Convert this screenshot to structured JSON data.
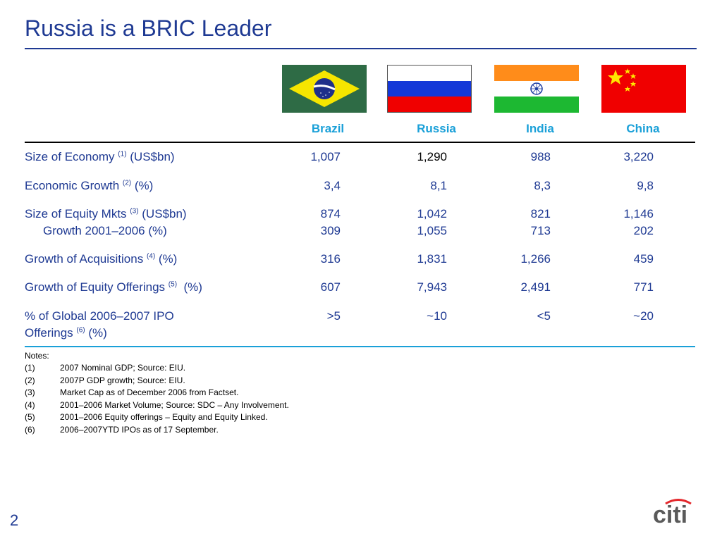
{
  "title": "Russia is a BRIC Leader",
  "countries": [
    "Brazil",
    "Russia",
    "India",
    "China"
  ],
  "flag_icons": [
    "brazil-flag-icon",
    "russia-flag-icon",
    "india-flag-icon",
    "china-flag-icon"
  ],
  "rows": [
    {
      "label": "Size of Economy",
      "note": "(1)",
      "suffix": " (US$bn)",
      "values": [
        "1,007",
        "1,290",
        "988",
        "3,220"
      ]
    },
    {
      "label": "Economic Growth",
      "note": "(2)",
      "suffix": " (%)",
      "values": [
        "3,4",
        "8,1",
        "8,3",
        "9,8"
      ]
    },
    {
      "label": "Size of Equity Mkts",
      "note": "(3)",
      "suffix": " (US$bn)",
      "values": [
        "874",
        "1,042",
        "821",
        "1,146"
      ]
    },
    {
      "label": "Growth 2001–2006 (%)",
      "values": [
        "309",
        "1,055",
        "713",
        "202"
      ]
    },
    {
      "label": "Growth of Acquisitions",
      "note": "(4)",
      "suffix": " (%)",
      "values": [
        "316",
        "1,831",
        "1,266",
        "459"
      ]
    },
    {
      "label": "Growth of Equity Offerings",
      "note": "(5)",
      "suffix": "  (%)",
      "values": [
        "607",
        "7,943",
        "2,491",
        "771"
      ]
    },
    {
      "label": "% of Global 2006–2007 IPO",
      "label2": "Offerings",
      "note": "(6)",
      "suffix": " (%)",
      "values": [
        ">5",
        "~10",
        "<5",
        "~20"
      ]
    }
  ],
  "notes": {
    "title": "Notes:",
    "items": [
      {
        "num": "(1)",
        "text": "2007 Nominal GDP; Source:  EIU."
      },
      {
        "num": "(2)",
        "text": "2007P GDP growth; Source:  EIU."
      },
      {
        "num": "(3)",
        "text": "Market Cap as of December 2006 from Factset."
      },
      {
        "num": "(4)",
        "text": "2001–2006 Market Volume; Source:  SDC – Any Involvement."
      },
      {
        "num": "(5)",
        "text": "2001–2006 Equity offerings – Equity and Equity Linked."
      },
      {
        "num": "(6)",
        "text": "2006–2007YTD IPOs as of 17 September."
      }
    ]
  },
  "page_number": "2",
  "logo_text": "citi",
  "colors": {
    "title": "#1f3a93",
    "accent": "#1aa0d8",
    "logo_arc": "#e4282c"
  }
}
